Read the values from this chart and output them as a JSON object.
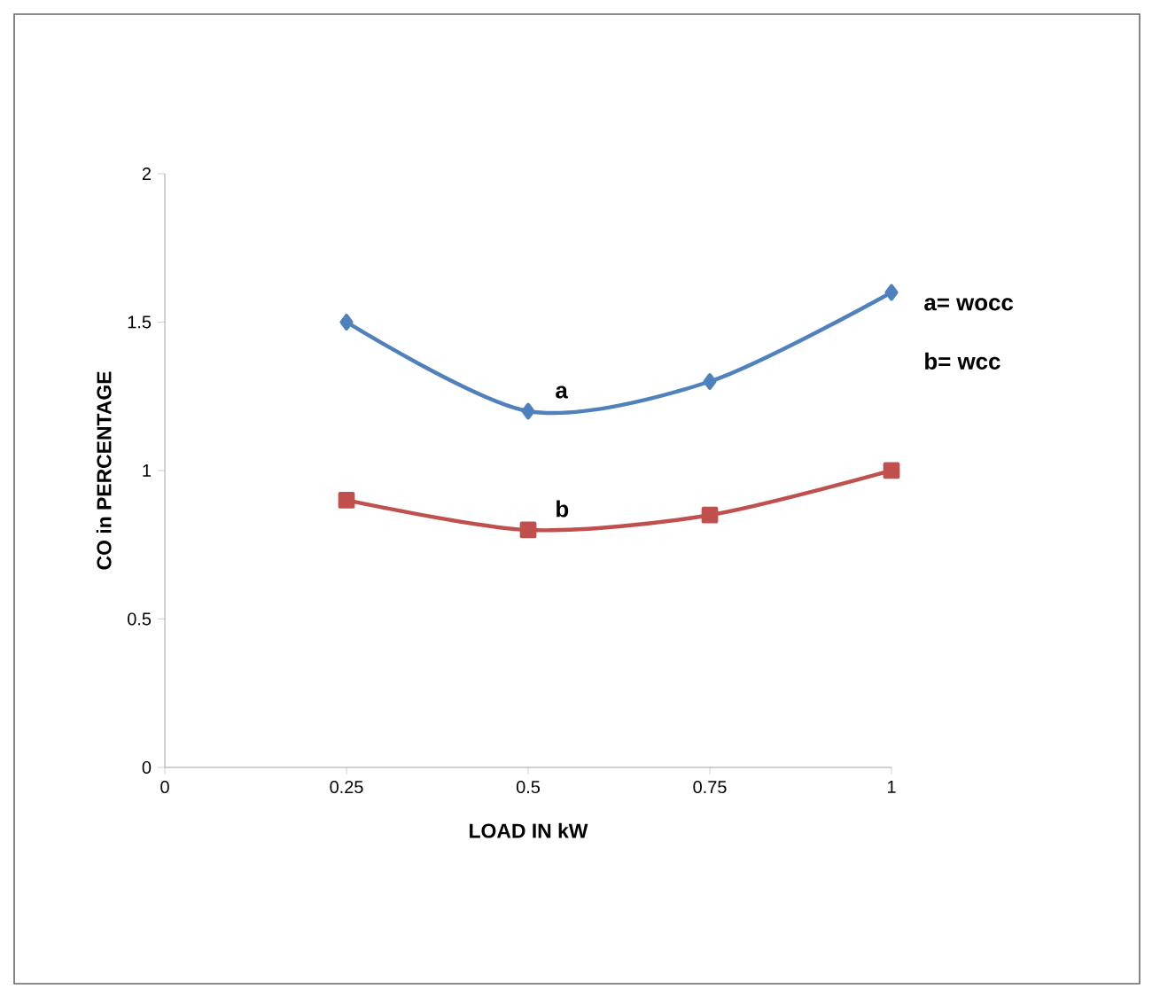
{
  "chart_data": {
    "type": "line",
    "xlabel": "LOAD IN kW",
    "ylabel": "CO in PERCENTAGE",
    "x": [
      0.25,
      0.5,
      0.75,
      1
    ],
    "series": [
      {
        "name": "a",
        "color": "#4f81bd",
        "values": [
          1.5,
          1.2,
          1.3,
          1.6
        ],
        "marker": "diamond"
      },
      {
        "name": "b",
        "color": "#c0504d",
        "values": [
          0.9,
          0.8,
          0.85,
          1.0
        ],
        "marker": "square"
      }
    ],
    "xlim": [
      0,
      1
    ],
    "xticks": [
      0,
      0.25,
      0.5,
      0.75,
      1
    ],
    "ylim": [
      0,
      2
    ],
    "yticks": [
      0,
      0.5,
      1,
      1.5,
      2
    ],
    "grid": false,
    "legend": false,
    "line_style": "solid",
    "annotations": [
      "a= wocc",
      "b= wcc"
    ]
  }
}
